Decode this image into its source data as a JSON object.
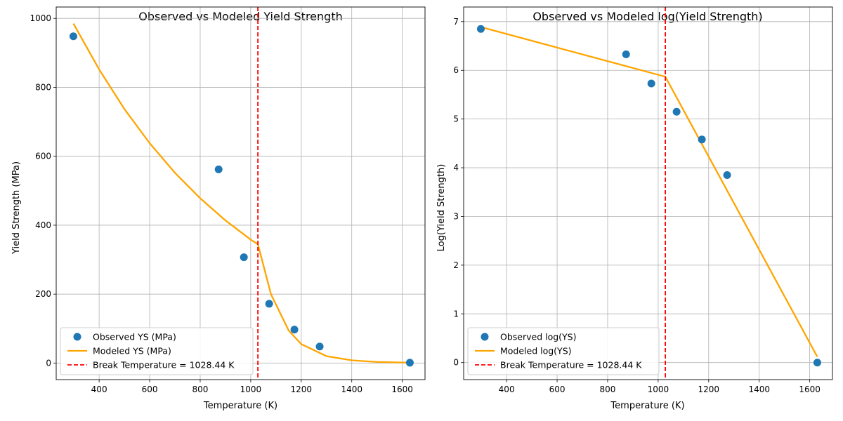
{
  "chart_data": [
    {
      "type": "line",
      "title": "Observed vs Modeled Yield Strength",
      "xlabel": "Temperature (K)",
      "ylabel": "Yield Strength (MPa)",
      "xlim": [
        230,
        1690
      ],
      "ylim": [
        -48,
        1033
      ],
      "xticks": [
        400,
        600,
        800,
        1000,
        1200,
        1400,
        1600
      ],
      "yticks": [
        0,
        200,
        400,
        600,
        800,
        1000
      ],
      "grid": true,
      "legend_position": "lower-left",
      "break_temperature": 1028.44,
      "series": [
        {
          "name": "Observed YS (MPa)",
          "kind": "scatter",
          "color": "#1f77b4",
          "x": [
            298,
            873,
            973,
            1073,
            1173,
            1273,
            1630
          ],
          "y": [
            948,
            562,
            307,
            172,
            97,
            48,
            1
          ]
        },
        {
          "name": "Modeled YS (MPa)",
          "kind": "line",
          "color": "#ffa500",
          "x": [
            298,
            400,
            500,
            600,
            700,
            800,
            900,
            1000,
            1028.44,
            1080,
            1150,
            1200,
            1300,
            1400,
            1500,
            1630
          ],
          "y": [
            985,
            852,
            737,
            638,
            552,
            478,
            414,
            358,
            345,
            200,
            95,
            55,
            20,
            8,
            3,
            1
          ]
        },
        {
          "name": "Break Temperature = 1028.44 K",
          "kind": "vline",
          "color": "#ff0000",
          "x": 1028.44
        }
      ]
    },
    {
      "type": "line",
      "title": "Observed vs Modeled log(Yield Strength)",
      "xlabel": "Temperature (K)",
      "ylabel": "Log(Yield Strength)",
      "xlim": [
        230,
        1690
      ],
      "ylim": [
        -0.35,
        7.3
      ],
      "xticks": [
        400,
        600,
        800,
        1000,
        1200,
        1400,
        1600
      ],
      "yticks": [
        0,
        1,
        2,
        3,
        4,
        5,
        6,
        7
      ],
      "grid": true,
      "legend_position": "lower-left",
      "break_temperature": 1028.44,
      "series": [
        {
          "name": "Observed log(YS)",
          "kind": "scatter",
          "color": "#1f77b4",
          "x": [
            298,
            873,
            973,
            1073,
            1173,
            1273,
            1630
          ],
          "y": [
            6.85,
            6.33,
            5.73,
            5.15,
            4.58,
            3.85,
            0.0
          ]
        },
        {
          "name": "Modeled log(YS)",
          "kind": "line",
          "color": "#ffa500",
          "x": [
            298,
            1028.44,
            1630
          ],
          "y": [
            6.89,
            5.87,
            0.12
          ]
        },
        {
          "name": "Break Temperature = 1028.44 K",
          "kind": "vline",
          "color": "#ff0000",
          "x": 1028.44
        }
      ]
    }
  ]
}
